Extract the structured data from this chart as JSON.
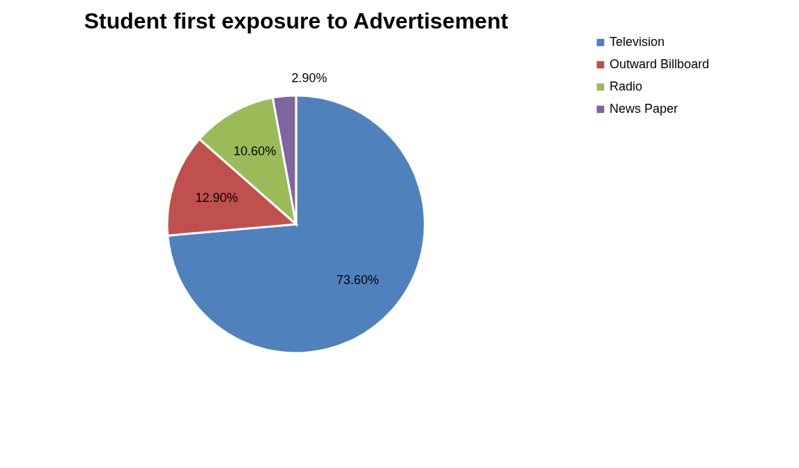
{
  "chart_data": {
    "type": "pie",
    "title": "Student first exposure to Advertisement",
    "categories": [
      "Television",
      "Outward Billboard",
      "Radio",
      "News Paper"
    ],
    "values": [
      73.6,
      12.9,
      10.6,
      2.9
    ],
    "colors": [
      "#4f81bd",
      "#c0504d",
      "#9bbb59",
      "#8064a2"
    ],
    "value_labels": [
      "73.60%",
      "12.90%",
      "10.60%",
      "2.90%"
    ],
    "legend": "right"
  }
}
